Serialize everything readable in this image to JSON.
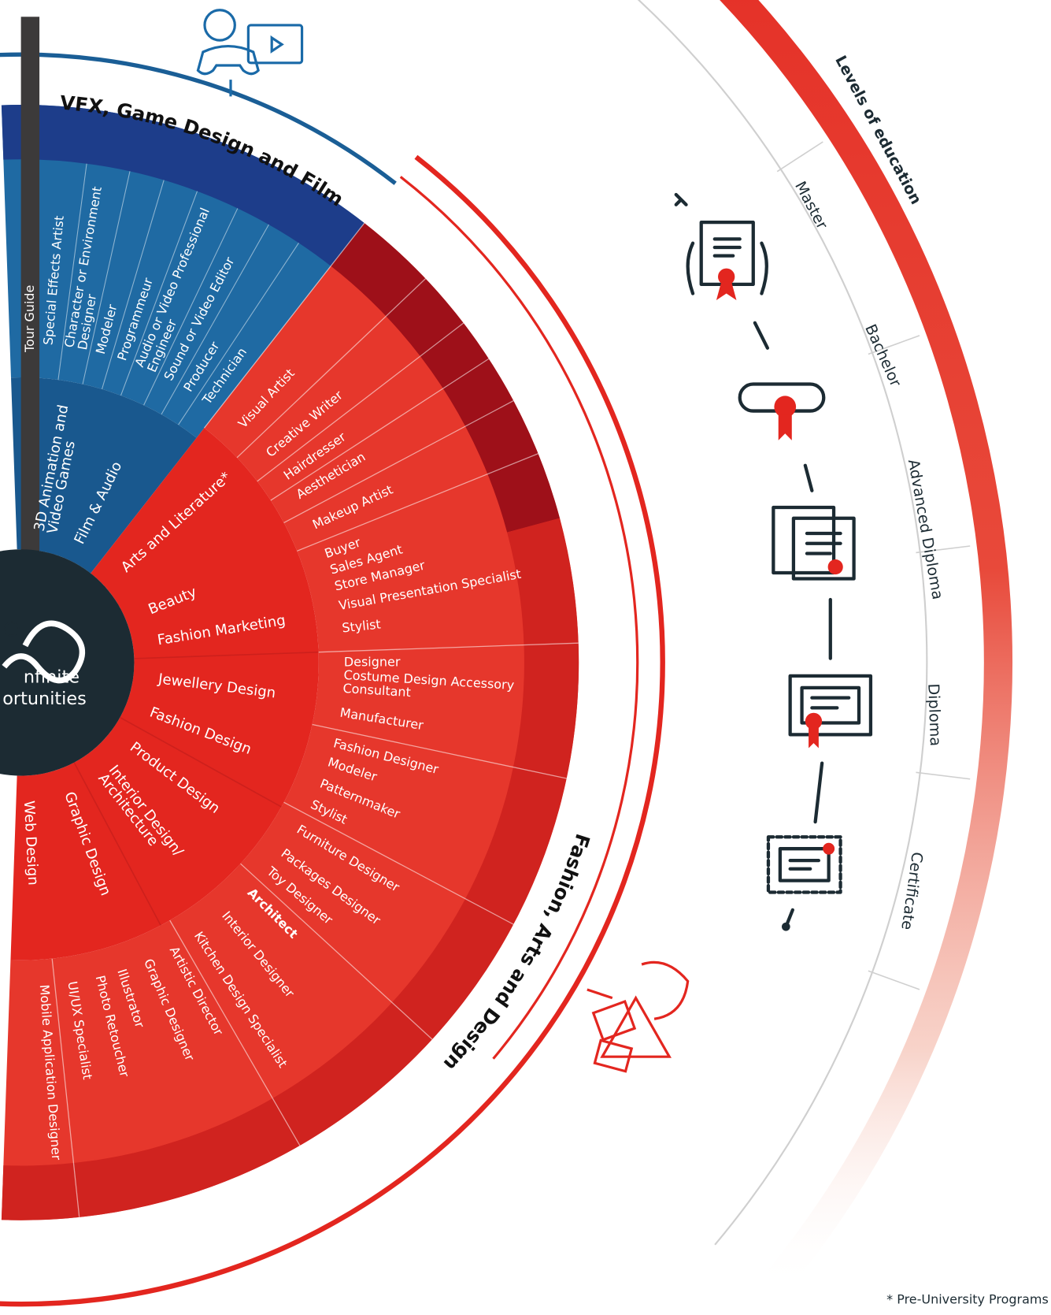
{
  "center": {
    "line1": "nfinite",
    "line2": "ortunities"
  },
  "side_strip": {
    "label": "Tour Guide"
  },
  "vfx": {
    "title": "VFX, Game Design and Film",
    "categories": [
      [
        "3D Animation and",
        "Video Games"
      ],
      "Film & Audio"
    ],
    "careers": [
      "Special Effects Artist",
      [
        "Character or Environment",
        "Designer"
      ],
      "Modeler",
      "Programmeur",
      [
        "Audio or Video Professional",
        "Engineer"
      ],
      "Sound or Video Editor",
      "Producer",
      "Technician"
    ]
  },
  "fashion": {
    "title": "Fashion, Arts and Design",
    "categories": [
      "Arts and Literature*",
      "Beauty",
      "Fashion Marketing",
      "Jewellery Design",
      "Fashion Design",
      "Product Design",
      [
        "Interior Design/",
        "Architecture"
      ],
      "Graphic Design",
      "Web Design"
    ],
    "careers": [
      "Visual Artist",
      "Creative Writer",
      "Hairdresser",
      "Aesthetician",
      "Makeup Artist",
      "Buyer",
      "Sales Agent",
      "Store Manager",
      "Visual Presentation Specialist",
      "Stylist",
      "Designer",
      [
        "Costume Design Accessory",
        "Consultant"
      ],
      "Manufacturer",
      "Fashion Designer",
      "Modeler",
      "Patternmaker",
      "Stylist",
      "Furniture Designer",
      "Packages Designer",
      "Toy Designer",
      "Architect",
      "Interior Designer",
      "Kitchen Design Specialist",
      "Artistic Director",
      "Graphic Designer",
      "Illustrator",
      "Photo Retoucher",
      "UI/UX Specialist",
      "Mobile Application Designer"
    ]
  },
  "levels": {
    "title": "Levels of education",
    "items": [
      "Master",
      "Bachelor",
      "Advanced Diploma",
      "Diploma",
      "Certificate"
    ]
  },
  "footnote": "* Pre-University Programs"
}
